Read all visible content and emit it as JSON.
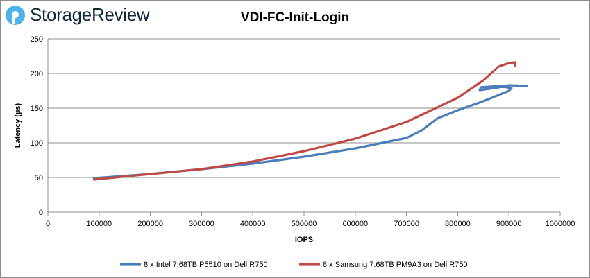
{
  "brand": "StorageReview",
  "chart_data": {
    "type": "line",
    "title": "VDI-FC-Init-Login",
    "xlabel": "IOPS",
    "ylabel": "Latency (µs)",
    "xlim": [
      0,
      1000000
    ],
    "ylim": [
      0,
      250
    ],
    "xticks": [
      0,
      100000,
      200000,
      300000,
      400000,
      500000,
      600000,
      700000,
      800000,
      900000,
      1000000
    ],
    "yticks": [
      0,
      50,
      100,
      150,
      200,
      250
    ],
    "grid": "horizontal",
    "legend": "bottom",
    "series": [
      {
        "name": "8 x Intel 7.68TB P5510 on Dell R750",
        "color": "#4a7ebb",
        "x": [
          90000,
          200000,
          300000,
          400000,
          500000,
          600000,
          700000,
          730000,
          760000,
          800000,
          850000,
          900000,
          905000,
          880000,
          845000,
          843000,
          880000,
          900000,
          935000
        ],
        "y": [
          49,
          55,
          62,
          70,
          80,
          92,
          107,
          118,
          135,
          147,
          160,
          175,
          179,
          182,
          180,
          176,
          180,
          183,
          182
        ]
      },
      {
        "name": "8 x Samsung 7.68TB PM9A3 on Dell R750",
        "color": "#be4b48",
        "x": [
          90000,
          200000,
          300000,
          400000,
          500000,
          600000,
          700000,
          800000,
          850000,
          880000,
          900000,
          912000,
          912000
        ],
        "y": [
          47,
          55,
          62,
          73,
          88,
          106,
          130,
          165,
          190,
          210,
          215,
          216,
          211
        ]
      }
    ]
  }
}
